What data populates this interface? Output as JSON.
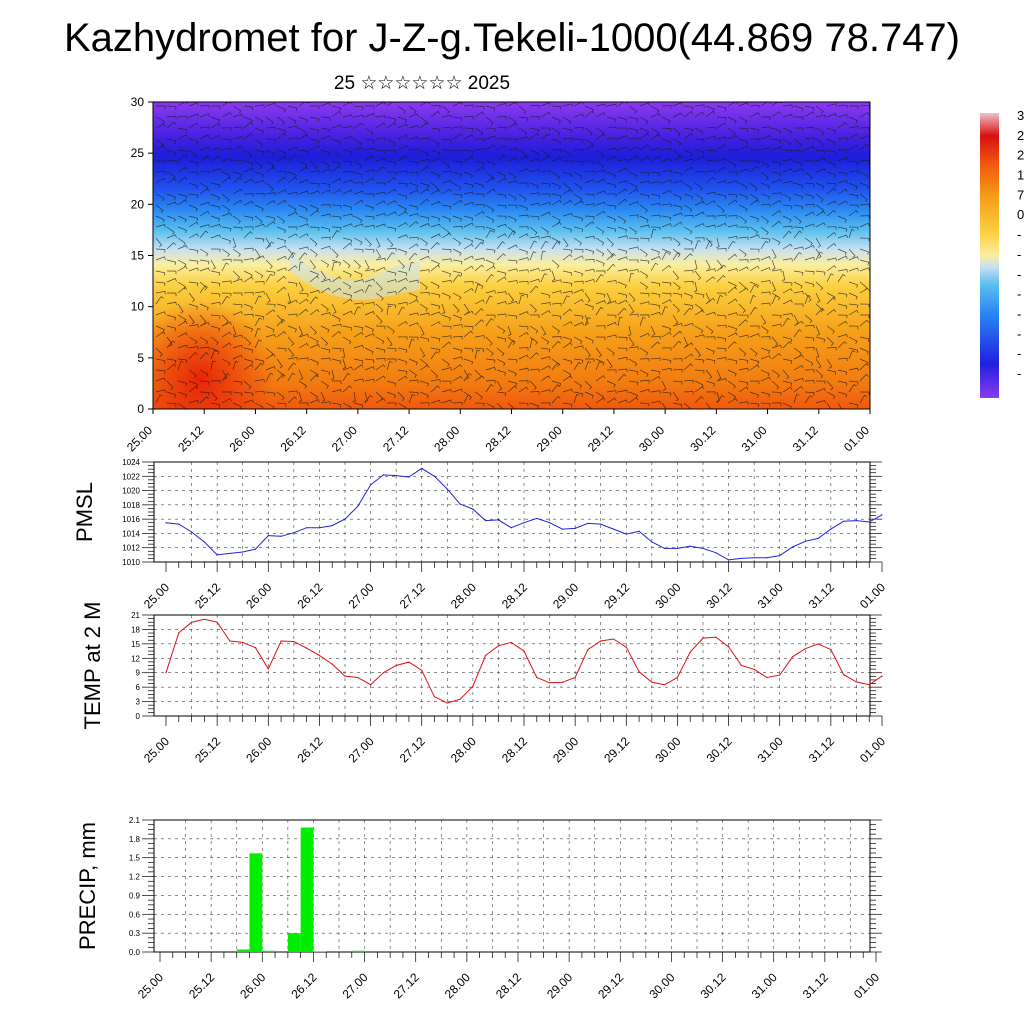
{
  "title": "Kazhydromet for J-Z-g.Tekeli-1000(44.869 78.747)",
  "subtitle": "25 ☆☆☆☆☆☆ 2025",
  "time_labels": [
    "25.00",
    "25.12",
    "26.00",
    "26.12",
    "27.00",
    "27.12",
    "28.00",
    "28.12",
    "29.00",
    "29.12",
    "30.00",
    "30.12",
    "31.00",
    "31.12",
    "01.00"
  ],
  "colorbar_labels": [
    "3",
    "2",
    "2",
    "1",
    "7",
    "0",
    "-",
    "-",
    "-",
    "-",
    "-",
    "-",
    "-",
    "-"
  ],
  "colors": {
    "pmsl_line": "#2222dd",
    "temp_line": "#dd1111",
    "precip_bar": "#00ee00"
  },
  "chart_data": [
    {
      "type": "heatmap",
      "name": "vertical cross-section",
      "ylim": [
        0,
        30
      ],
      "yticks": [
        0,
        5,
        10,
        15,
        20,
        25,
        30
      ],
      "x_categories": [
        "25.00",
        "25.12",
        "26.00",
        "26.12",
        "27.00",
        "27.12",
        "28.00",
        "28.12",
        "29.00",
        "29.12",
        "30.00",
        "30.12",
        "31.00",
        "31.12",
        "01.00"
      ]
    },
    {
      "type": "line",
      "ylabel": "PMSL",
      "ylim": [
        1010,
        1024
      ],
      "yticks": [
        1010,
        1012,
        1014,
        1016,
        1018,
        1020,
        1022,
        1024
      ],
      "x_hours_start": 0,
      "x_hours_step": 3,
      "values": [
        1015.5,
        1015.3,
        1014.2,
        1012.8,
        1011.0,
        1011.2,
        1011.4,
        1011.8,
        1013.7,
        1013.6,
        1014.1,
        1014.8,
        1014.8,
        1015.1,
        1016.0,
        1017.8,
        1020.8,
        1022.2,
        1022.1,
        1021.9,
        1023.1,
        1022.0,
        1020.2,
        1018.1,
        1017.4,
        1015.8,
        1015.9,
        1014.8,
        1015.5,
        1016.1,
        1015.5,
        1014.6,
        1014.7,
        1015.4,
        1015.3,
        1014.6,
        1013.9,
        1014.3,
        1012.8,
        1011.9,
        1011.9,
        1012.2,
        1011.9,
        1011.3,
        1010.3,
        1010.5,
        1010.6,
        1010.6,
        1010.9,
        1012.1,
        1012.9,
        1013.3,
        1014.6,
        1015.7,
        1015.8,
        1015.6,
        1016.6
      ]
    },
    {
      "type": "line",
      "ylabel": "TEMP at 2 M",
      "ylim": [
        0,
        21
      ],
      "yticks": [
        0,
        3,
        6,
        9,
        12,
        15,
        18,
        21
      ],
      "x_hours_start": 0,
      "x_hours_step": 3,
      "values": [
        9.0,
        17.3,
        19.5,
        20.1,
        19.5,
        15.6,
        15.3,
        14.2,
        9.8,
        15.6,
        15.5,
        14.1,
        12.6,
        10.8,
        8.3,
        8.0,
        6.5,
        9.0,
        10.5,
        11.2,
        9.5,
        4.0,
        2.7,
        3.5,
        6.2,
        12.6,
        14.6,
        15.3,
        13.5,
        8.0,
        6.9,
        7.0,
        8.0,
        13.8,
        15.6,
        16.0,
        14.3,
        9.2,
        7.0,
        6.5,
        8.0,
        13.3,
        16.2,
        16.4,
        14.4,
        10.5,
        9.7,
        8.0,
        8.5,
        12.3,
        14.0,
        15.0,
        13.8,
        8.6,
        7.1,
        6.5,
        8.3
      ]
    },
    {
      "type": "bar",
      "ylabel": "PRECIP, mm",
      "ylim": [
        0,
        2.1
      ],
      "yticks": [
        0.0,
        0.3,
        0.6,
        0.9,
        1.2,
        1.5,
        1.8,
        2.1
      ],
      "x_hours_step": 3,
      "values": [
        0,
        0,
        0,
        0,
        0,
        0,
        0.04,
        1.57,
        0.02,
        0,
        0.3,
        1.98,
        0.01,
        0,
        0,
        0.02,
        0,
        0,
        0,
        0,
        0,
        0,
        0,
        0,
        0,
        0,
        0,
        0,
        0,
        0,
        0,
        0,
        0,
        0,
        0,
        0,
        0,
        0,
        0,
        0,
        0,
        0,
        0,
        0,
        0,
        0,
        0,
        0,
        0,
        0,
        0,
        0,
        0,
        0,
        0,
        0
      ]
    }
  ]
}
